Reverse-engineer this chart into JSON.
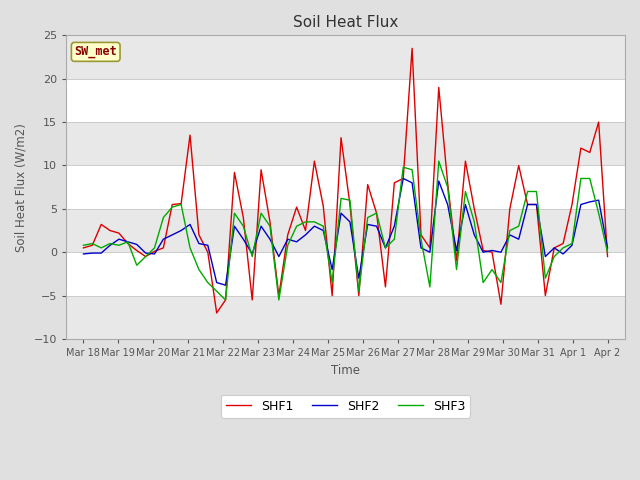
{
  "title": "Soil Heat Flux",
  "ylabel": "Soil Heat Flux (W/m2)",
  "xlabel": "Time",
  "ylim": [
    -10,
    25
  ],
  "yticks": [
    -10,
    -5,
    0,
    5,
    10,
    15,
    20,
    25
  ],
  "fig_bg": "#e0e0e0",
  "plot_bg": "#ffffff",
  "band_color": "#e8e8e8",
  "grid_color": "#cccccc",
  "shf1_color": "#dd0000",
  "shf2_color": "#0000cc",
  "shf3_color": "#00aa00",
  "label_color": "#555555",
  "annotation_text": "SW_met",
  "annotation_bg": "#ffffcc",
  "annotation_fg": "#880000",
  "x_labels": [
    "Mar 18",
    "Mar 19",
    "Mar 20",
    "Mar 21",
    "Mar 22",
    "Mar 23",
    "Mar 24",
    "Mar 25",
    "Mar 26",
    "Mar 27",
    "Mar 28",
    "Mar 29",
    "Mar 30",
    "Mar 31",
    "Apr 1",
    "Apr 2"
  ],
  "shf1": [
    0.5,
    0.8,
    3.2,
    2.5,
    2.2,
    1.0,
    0.2,
    -0.5,
    0.1,
    0.5,
    5.5,
    5.6,
    13.5,
    2.0,
    0.0,
    -7.0,
    -5.5,
    9.2,
    4.0,
    -5.5,
    9.5,
    3.5,
    -5.0,
    2.0,
    5.2,
    2.5,
    10.5,
    5.3,
    -5.0,
    13.2,
    5.5,
    -5.0,
    7.8,
    4.5,
    -4.0,
    8.0,
    8.5,
    23.5,
    2.0,
    0.5,
    19.0,
    8.0,
    -1.0,
    10.5,
    5.0,
    0.2,
    0.0,
    -6.0,
    5.0,
    10.0,
    5.5,
    5.5,
    -5.0,
    0.5,
    1.0,
    5.5,
    12.0,
    11.5,
    15.0,
    -0.5
  ],
  "shf2": [
    -0.2,
    -0.1,
    -0.1,
    0.8,
    1.5,
    1.2,
    0.9,
    -0.1,
    -0.2,
    1.5,
    2.0,
    2.5,
    3.2,
    1.0,
    0.8,
    -3.5,
    -3.8,
    3.0,
    1.5,
    -0.2,
    3.0,
    1.5,
    -0.5,
    1.5,
    1.2,
    2.0,
    3.0,
    2.5,
    -2.0,
    4.5,
    3.5,
    -3.0,
    3.2,
    3.0,
    0.5,
    3.0,
    8.5,
    8.0,
    0.5,
    0.0,
    8.2,
    5.5,
    0.2,
    5.5,
    2.0,
    0.0,
    0.2,
    0.0,
    2.0,
    1.5,
    5.5,
    5.5,
    -0.5,
    0.5,
    -0.2,
    0.8,
    5.5,
    5.8,
    6.0,
    0.5
  ],
  "shf3": [
    0.8,
    1.0,
    0.5,
    1.0,
    0.8,
    1.2,
    -1.5,
    -0.5,
    0.5,
    4.0,
    5.2,
    5.5,
    0.5,
    -2.0,
    -3.5,
    -4.5,
    -5.5,
    4.5,
    3.0,
    -0.5,
    4.5,
    3.0,
    -5.5,
    0.8,
    3.0,
    3.5,
    3.5,
    3.0,
    -3.5,
    6.2,
    6.0,
    -4.5,
    4.0,
    4.5,
    0.5,
    1.5,
    9.8,
    9.5,
    1.5,
    -4.0,
    10.5,
    7.5,
    -2.0,
    7.0,
    3.5,
    -3.5,
    -2.0,
    -3.5,
    2.5,
    3.0,
    7.0,
    7.0,
    -3.0,
    -0.5,
    0.5,
    1.0,
    8.5,
    8.5,
    4.5,
    0.0
  ]
}
